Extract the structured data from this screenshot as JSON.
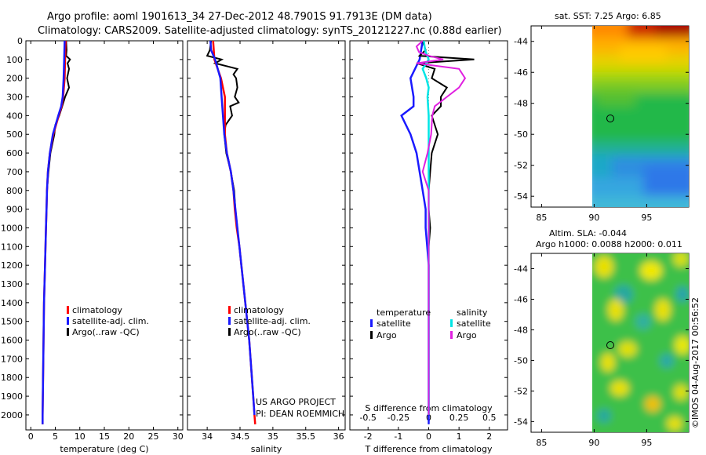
{
  "header": {
    "line1": "Argo profile: aoml 1901613_34 27-Dec-2012 48.7901S 91.7913E (DM data)",
    "line2": "Climatology: CARS2009. Satellite-adjusted climatology: synTS_20121227.nc (0.88d earlier)"
  },
  "colors": {
    "climatology": "#ff0000",
    "satellite": "#1a1aff",
    "argo": "#000000",
    "sat_salinity": "#00e5e5",
    "argo_salinity": "#e020e0"
  },
  "chart_data": [
    {
      "type": "line",
      "id": "temperature",
      "xlabel": "temperature (deg C)",
      "xlim": [
        -1,
        31
      ],
      "ylim": [
        2080,
        0
      ],
      "xticks": [
        "0",
        "5",
        "10",
        "15",
        "20",
        "25",
        "30"
      ],
      "yticks": [
        "0",
        "100",
        "200",
        "300",
        "400",
        "500",
        "600",
        "700",
        "800",
        "900",
        "1000",
        "1100",
        "1200",
        "1300",
        "1400",
        "1500",
        "1600",
        "1700",
        "1800",
        "1900",
        "2000"
      ],
      "legend": [
        "climatology",
        "satellite-adj. clim.",
        "Argo(..raw -QC)"
      ],
      "series": [
        {
          "name": "climatology",
          "pressure": [
            0,
            100,
            200,
            300,
            350,
            400,
            500,
            600,
            700,
            800,
            900,
            1000,
            1200,
            1400,
            1600,
            1800,
            2000,
            2050
          ],
          "values": [
            7.1,
            7.0,
            6.9,
            6.6,
            6.3,
            5.7,
            4.6,
            3.9,
            3.5,
            3.3,
            3.2,
            3.1,
            2.9,
            2.7,
            2.6,
            2.5,
            2.4,
            2.4
          ]
        },
        {
          "name": "satellite-adj. clim.",
          "pressure": [
            0,
            100,
            200,
            300,
            350,
            400,
            500,
            600,
            700,
            800,
            900,
            1000,
            1200,
            1400,
            1600,
            1800,
            2000,
            2050
          ],
          "values": [
            6.9,
            6.8,
            6.7,
            6.5,
            6.2,
            5.6,
            4.5,
            3.9,
            3.5,
            3.3,
            3.2,
            3.1,
            2.9,
            2.7,
            2.6,
            2.5,
            2.4,
            2.4
          ]
        },
        {
          "name": "Argo(..raw -QC)",
          "pressure": [
            0,
            50,
            80,
            100,
            120,
            150,
            200,
            250,
            300,
            350,
            400,
            450,
            500,
            550,
            600,
            700,
            800,
            900,
            1000,
            1200,
            1400,
            1600,
            1800,
            2000,
            2050
          ],
          "values": [
            7.2,
            7.3,
            7.2,
            8.0,
            7.5,
            7.8,
            7.4,
            7.8,
            7.0,
            6.4,
            5.8,
            5.0,
            4.8,
            4.4,
            4.0,
            3.6,
            3.3,
            3.2,
            3.1,
            2.9,
            2.7,
            2.6,
            2.5,
            2.4,
            2.4
          ]
        }
      ]
    },
    {
      "type": "line",
      "id": "salinity",
      "xlabel": "salinity",
      "xlim": [
        33.7,
        36.1
      ],
      "ylim": [
        2080,
        0
      ],
      "xticks": [
        "34",
        "34.5",
        "35",
        "35.5",
        "36"
      ],
      "legend": [
        "climatology",
        "satellite-adj. clim.",
        "Argo(..raw -QC)"
      ],
      "annotation": [
        "US ARGO PROJECT",
        "PI: DEAN ROEMMICH"
      ],
      "series": [
        {
          "name": "climatology",
          "pressure": [
            0,
            100,
            200,
            300,
            400,
            500,
            600,
            700,
            800,
            900,
            1000,
            1100,
            1200,
            1300,
            1400,
            1500,
            1600,
            1700,
            1800,
            1900,
            2000,
            2050
          ],
          "values": [
            34.09,
            34.11,
            34.21,
            34.27,
            34.27,
            34.27,
            34.3,
            34.36,
            34.4,
            34.42,
            34.45,
            34.49,
            34.52,
            34.55,
            34.58,
            34.61,
            34.64,
            34.66,
            34.68,
            34.7,
            34.72,
            34.73
          ]
        },
        {
          "name": "satellite-adj. clim.",
          "pressure": [
            0,
            50,
            100,
            200,
            300,
            400,
            500,
            600,
            700,
            800,
            900,
            1000,
            1100,
            1200,
            1300,
            1400,
            1500,
            1600,
            1700,
            1800,
            1900,
            2000
          ],
          "values": [
            34.05,
            34.06,
            34.12,
            34.2,
            34.22,
            34.24,
            34.26,
            34.3,
            34.36,
            34.4,
            34.43,
            34.46,
            34.49,
            34.52,
            34.55,
            34.58,
            34.61,
            34.64,
            34.66,
            34.68,
            34.7,
            34.72
          ]
        },
        {
          "name": "Argo(..raw -QC)",
          "pressure": [
            0,
            50,
            80,
            100,
            120,
            150,
            180,
            200,
            250,
            300,
            330,
            350,
            400,
            450,
            500,
            600,
            700,
            800,
            900,
            1000,
            1200,
            1400,
            1600,
            1800,
            2000
          ],
          "values": [
            34.06,
            34.04,
            34.0,
            34.22,
            34.12,
            34.46,
            34.4,
            34.44,
            34.46,
            34.42,
            34.48,
            34.35,
            34.38,
            34.28,
            34.26,
            34.29,
            34.36,
            34.41,
            34.43,
            34.46,
            34.52,
            34.58,
            34.64,
            34.68,
            34.72
          ]
        }
      ]
    },
    {
      "type": "line",
      "id": "difference",
      "xlabel": "T difference from climatology",
      "xlabel_top": "S difference from climatology",
      "xlim": [
        -2.6,
        2.6
      ],
      "ylim": [
        2080,
        0
      ],
      "xticks": [
        "-2",
        "-1",
        "0",
        "1",
        "2"
      ],
      "xticks_top": [
        "-0.5",
        "-0.25",
        "0",
        "0.25",
        "0.5"
      ],
      "legend_titles": [
        "temperature",
        "salinity"
      ],
      "legend": [
        "satellite",
        "Argo",
        "satellite",
        "Argo"
      ],
      "series": [
        {
          "name": "temperature satellite",
          "pressure": [
            0,
            100,
            200,
            300,
            350,
            400,
            500,
            600,
            700,
            800,
            900,
            1000,
            1100,
            1200,
            1400,
            1600,
            1800,
            2000,
            2050
          ],
          "values": [
            -0.2,
            -0.3,
            -0.6,
            -0.5,
            -0.5,
            -0.9,
            -0.6,
            -0.4,
            -0.3,
            -0.2,
            -0.1,
            -0.1,
            -0.05,
            0,
            0,
            0,
            0,
            0,
            0
          ]
        },
        {
          "name": "temperature Argo",
          "pressure": [
            0,
            50,
            80,
            100,
            120,
            150,
            200,
            250,
            300,
            350,
            400,
            500,
            600,
            700,
            800,
            900,
            1000,
            1100,
            1200,
            1400,
            1600,
            1800,
            2000
          ],
          "values": [
            -0.2,
            -0.1,
            -0.3,
            1.5,
            -0.4,
            0.2,
            0.1,
            0.6,
            0.4,
            0.4,
            0.1,
            0.3,
            0.1,
            0.05,
            0,
            0,
            0.05,
            0,
            0,
            0,
            0,
            0,
            0
          ]
        },
        {
          "name": "salinity satellite",
          "pressure": [
            0,
            50,
            100,
            150,
            200,
            250,
            300,
            400,
            500,
            600,
            700,
            800,
            900,
            1000,
            1100,
            1200,
            1400,
            1600,
            1800,
            2000
          ],
          "values": [
            -0.04,
            -0.03,
            0,
            -0.05,
            -0.02,
            0,
            -0.01,
            0,
            0,
            0,
            0,
            0,
            0,
            0,
            0,
            0,
            0,
            0,
            0,
            0
          ]
        },
        {
          "name": "salinity Argo",
          "pressure": [
            0,
            30,
            60,
            80,
            100,
            120,
            150,
            200,
            250,
            300,
            350,
            400,
            500,
            600,
            700,
            800,
            900,
            1000,
            1100,
            1200,
            1400,
            1600,
            1800,
            2000
          ],
          "values": [
            -0.05,
            -0.1,
            -0.08,
            0.0,
            0.12,
            -0.1,
            0.25,
            0.3,
            0.25,
            0.15,
            0.05,
            0.03,
            0.02,
            -0.01,
            -0.05,
            0,
            0,
            0,
            0,
            0,
            0,
            0,
            0,
            0
          ]
        }
      ]
    },
    {
      "type": "heatmap",
      "id": "sst_map",
      "title": "sat. SST: 7.25 Argo: 6.85",
      "xticks": [
        "85",
        "90",
        "95"
      ],
      "yticks": [
        "-44",
        "-46",
        "-48",
        "-50",
        "-52",
        "-54"
      ],
      "marker": {
        "lon": 91.79,
        "lat": -48.79
      }
    },
    {
      "type": "heatmap",
      "id": "sla_map",
      "title": [
        "Altim. SLA: -0.044",
        "Argo h1000: 0.0088 h2000: 0.011"
      ],
      "xticks": [
        "85",
        "90",
        "95"
      ],
      "yticks": [
        "-44",
        "-46",
        "-48",
        "-50",
        "-52",
        "-54"
      ],
      "marker": {
        "lon": 91.79,
        "lat": -48.79
      }
    }
  ],
  "stamp": "©IMOS 04-Aug-2017 00:56:52"
}
